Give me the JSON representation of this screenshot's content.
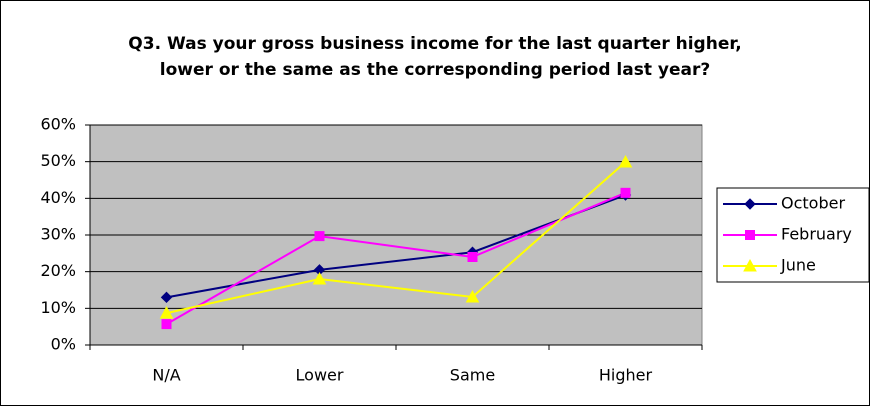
{
  "chart_data": {
    "type": "line",
    "title": [
      "Q3. Was your gross business income for the last quarter higher,",
      "lower or the same as the corresponding period last year?"
    ],
    "categories": [
      "N/A",
      "Lower",
      "Same",
      "Higher"
    ],
    "series": [
      {
        "name": "October",
        "color": "#000080",
        "marker": "diamond",
        "values": [
          13,
          20.5,
          25.3,
          40.9
        ]
      },
      {
        "name": "February",
        "color": "#ff00ff",
        "marker": "square",
        "values": [
          5.7,
          29.7,
          24,
          41.5
        ]
      },
      {
        "name": "June",
        "color": "#ffff00",
        "marker": "triangle",
        "values": [
          8.7,
          18,
          13.1,
          49.9
        ]
      }
    ],
    "ylim": [
      0,
      60
    ],
    "yticks": [
      {
        "value": 0,
        "label": "0%"
      },
      {
        "value": 10,
        "label": "10%"
      },
      {
        "value": 20,
        "label": "20%"
      },
      {
        "value": 30,
        "label": "30%"
      },
      {
        "value": 40,
        "label": "40%"
      },
      {
        "value": 50,
        "label": "50%"
      },
      {
        "value": 60,
        "label": "60%"
      }
    ],
    "grid": true,
    "legend": "right"
  }
}
